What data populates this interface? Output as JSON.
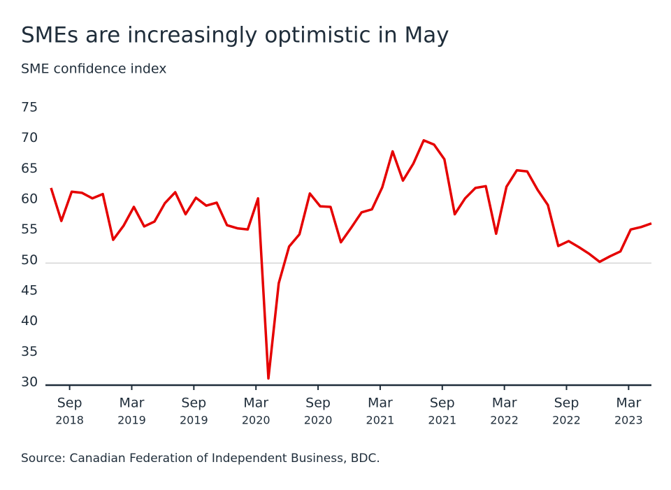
{
  "chart_data": {
    "type": "line",
    "title": "SMEs are increasingly optimistic in May",
    "subtitle": "SME confidence index",
    "source": "Source: Canadian Federation of Independent Business, BDC.",
    "x": [
      "2018-07",
      "2018-08",
      "2018-09",
      "2018-10",
      "2018-11",
      "2018-12",
      "2019-01",
      "2019-02",
      "2019-03",
      "2019-04",
      "2019-05",
      "2019-06",
      "2019-07",
      "2019-08",
      "2019-09",
      "2019-10",
      "2019-11",
      "2019-12",
      "2020-01",
      "2020-02",
      "2020-03",
      "2020-04",
      "2020-05",
      "2020-06",
      "2020-07",
      "2020-08",
      "2020-09",
      "2020-10",
      "2020-11",
      "2020-12",
      "2021-01",
      "2021-02",
      "2021-03",
      "2021-04",
      "2021-05",
      "2021-06",
      "2021-07",
      "2021-08",
      "2021-09",
      "2021-10",
      "2021-11",
      "2021-12",
      "2022-01",
      "2022-02",
      "2022-03",
      "2022-04",
      "2022-05",
      "2022-06",
      "2022-07",
      "2022-08",
      "2022-09",
      "2022-10",
      "2022-11",
      "2022-12",
      "2023-01",
      "2023-02",
      "2023-03",
      "2023-04",
      "2023-05"
    ],
    "series": [
      {
        "name": "SME confidence index",
        "color": "#e50000",
        "values": [
          62.3,
          56.9,
          61.7,
          61.5,
          60.6,
          61.3,
          53.8,
          56.1,
          59.2,
          56.0,
          56.8,
          59.8,
          61.6,
          58.0,
          60.7,
          59.4,
          59.9,
          56.2,
          55.7,
          55.5,
          60.6,
          31.1,
          46.7,
          52.7,
          54.7,
          61.4,
          59.3,
          59.2,
          53.4,
          55.8,
          58.3,
          58.8,
          62.4,
          68.3,
          63.5,
          66.3,
          70.1,
          69.4,
          67.0,
          58.0,
          60.6,
          62.3,
          62.6,
          54.8,
          62.5,
          65.2,
          65.0,
          62.0,
          59.5,
          52.8,
          53.6,
          52.6,
          51.5,
          50.2,
          51.1,
          51.9,
          55.5,
          55.9,
          56.5
        ]
      }
    ],
    "ylim": [
      30,
      75
    ],
    "yticks": [
      30,
      35,
      40,
      45,
      50,
      55,
      60,
      65,
      70,
      75
    ],
    "hline": 50,
    "xticks": [
      {
        "value": "2018-09",
        "label": [
          "Sep",
          "2018"
        ]
      },
      {
        "value": "2019-03",
        "label": [
          "Mar",
          "2019"
        ]
      },
      {
        "value": "2019-09",
        "label": [
          "Sep",
          "2019"
        ]
      },
      {
        "value": "2020-03",
        "label": [
          "Mar",
          "2020"
        ]
      },
      {
        "value": "2020-09",
        "label": [
          "Sep",
          "2020"
        ]
      },
      {
        "value": "2021-03",
        "label": [
          "Mar",
          "2021"
        ]
      },
      {
        "value": "2021-09",
        "label": [
          "Sep",
          "2021"
        ]
      },
      {
        "value": "2022-03",
        "label": [
          "Mar",
          "2022"
        ]
      },
      {
        "value": "2022-09",
        "label": [
          "Sep",
          "2022"
        ]
      },
      {
        "value": "2023-03",
        "label": [
          "Mar",
          "2023"
        ]
      }
    ]
  }
}
